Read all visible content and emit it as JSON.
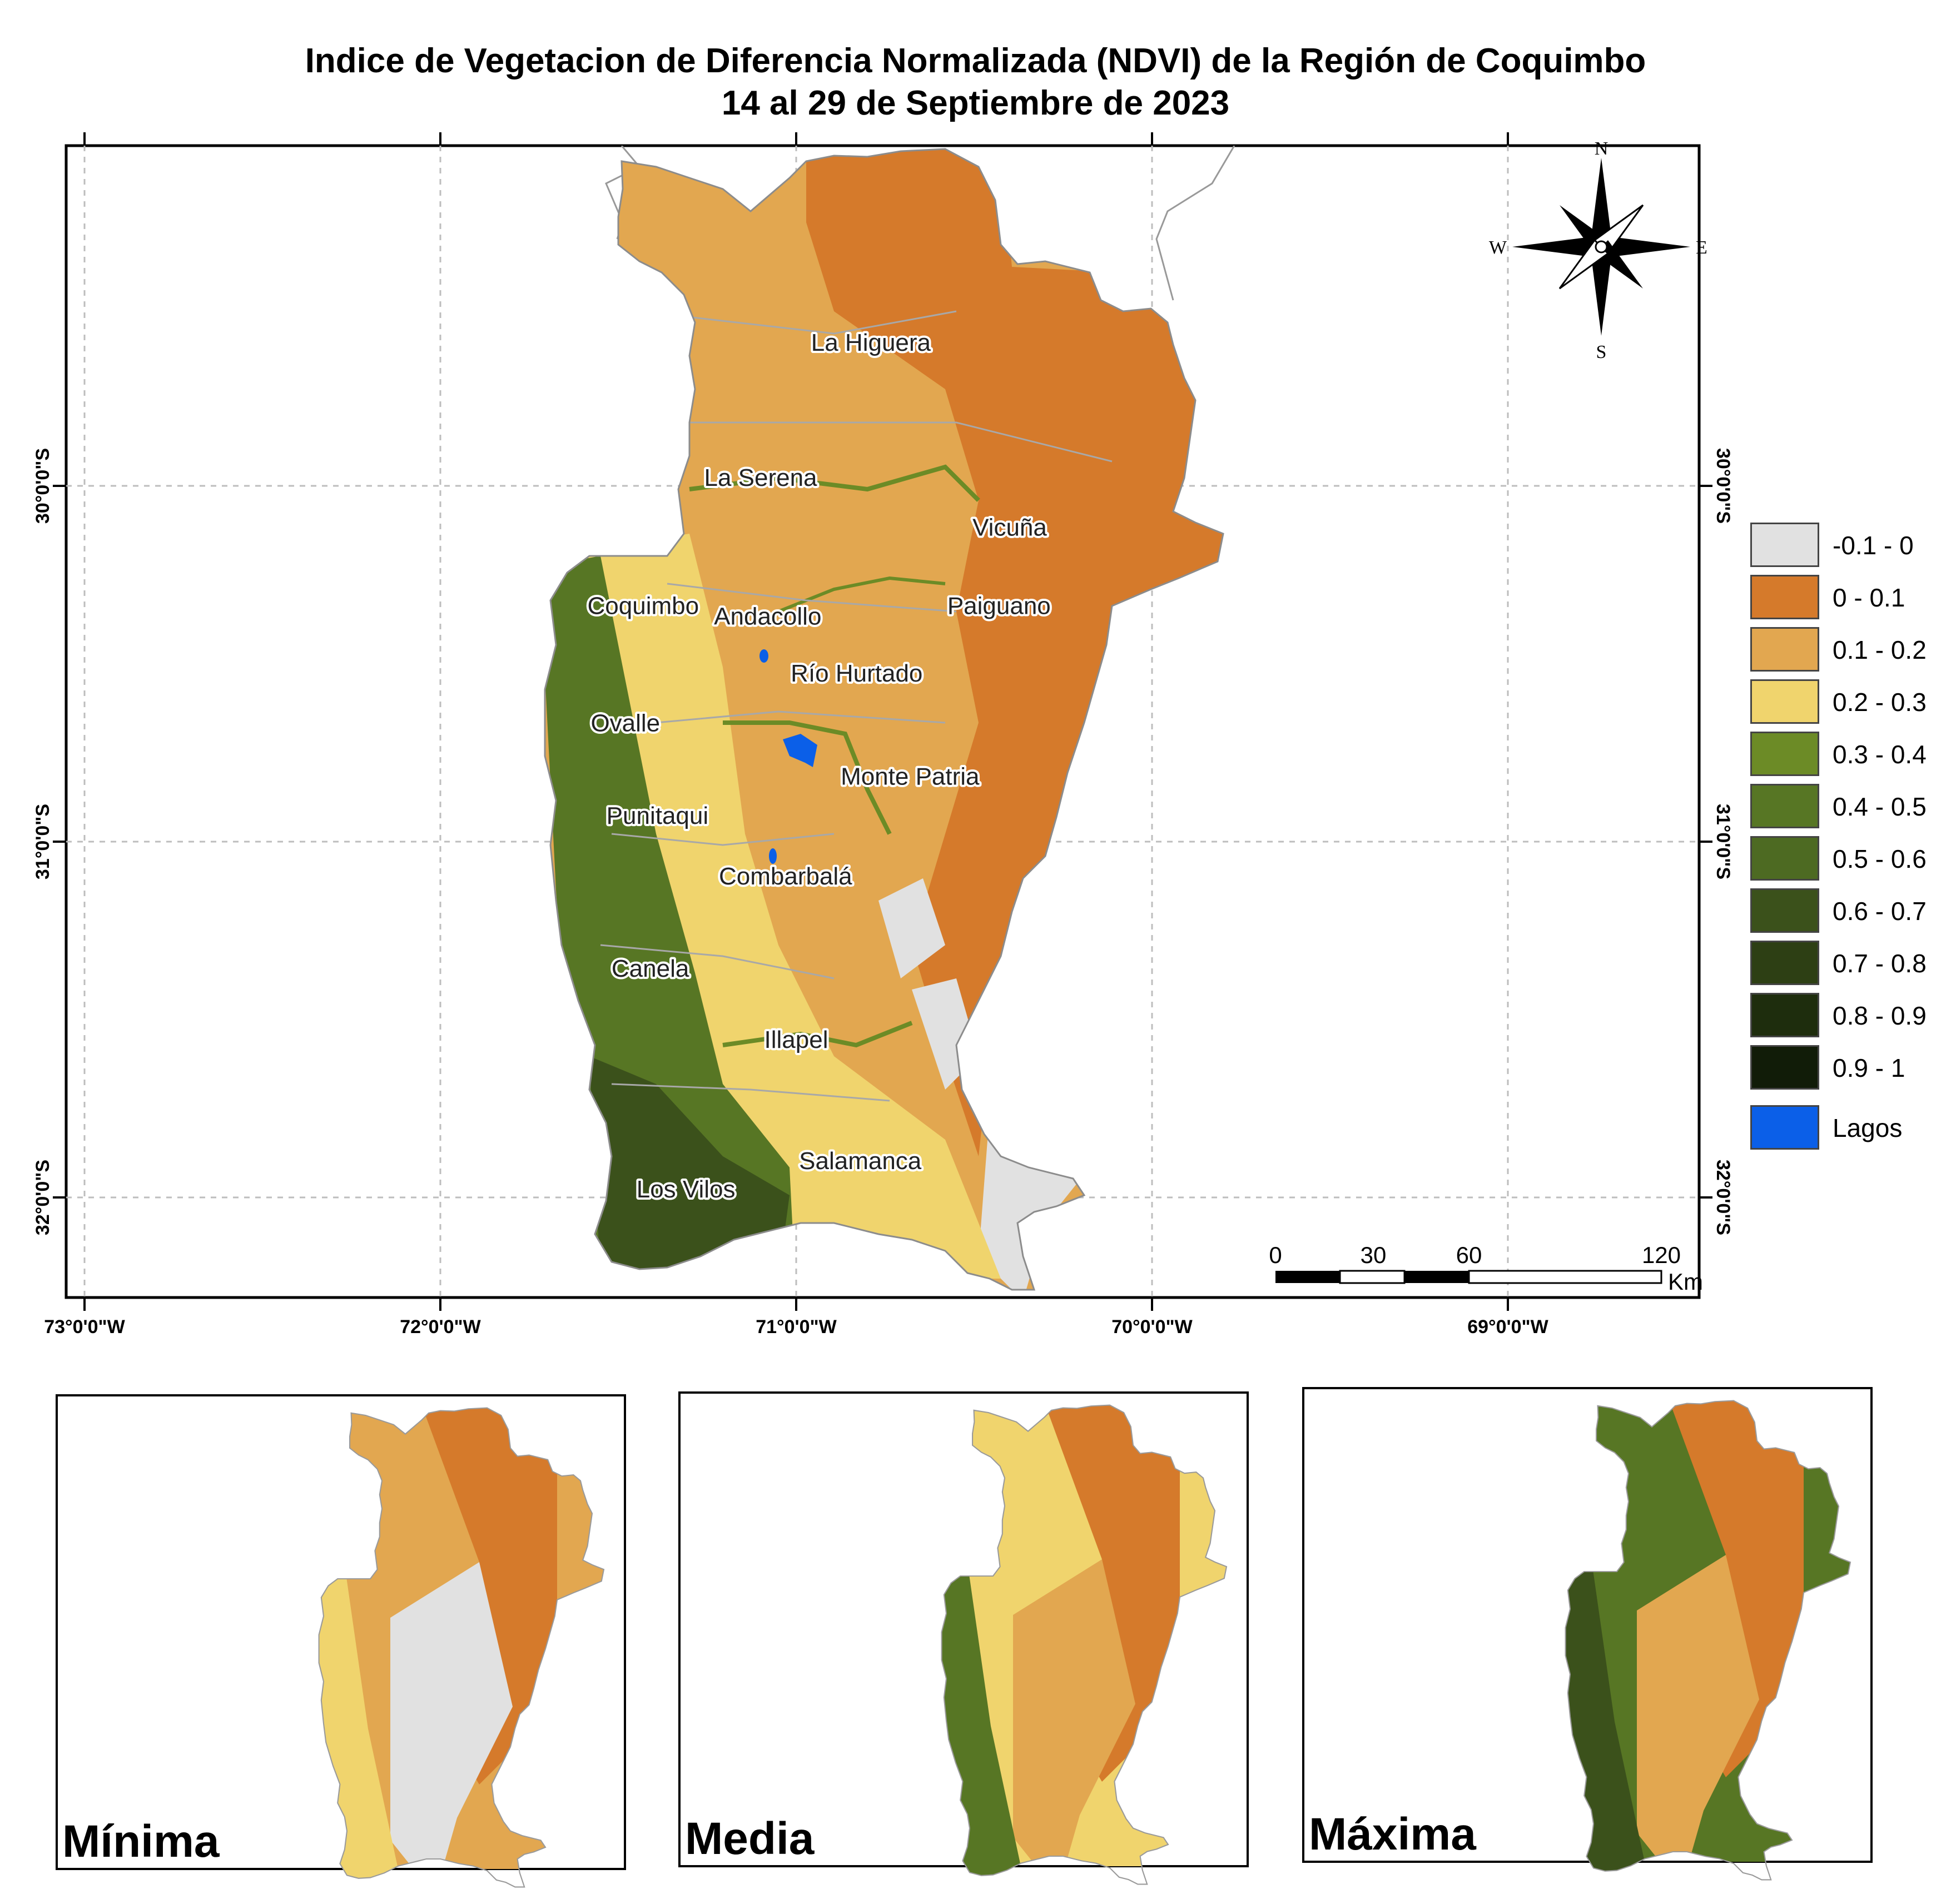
{
  "title": {
    "line1": "Indice de Vegetacion de Diferencia Normalizada (NDVI) de la Región de Coquimbo",
    "line2": "14 al 29 de Septiembre de 2023"
  },
  "map": {
    "lon_ticks": [
      "73°0'0\"W",
      "72°0'0\"W",
      "71°0'0\"W",
      "70°0'0\"W",
      "69°0'0\"W"
    ],
    "lat_ticks": [
      "30°0'0\"S",
      "31°0'0\"S",
      "32°0'0\"S"
    ],
    "places": [
      {
        "name": "La Higuera",
        "lon": -70.79,
        "lat": -29.62
      },
      {
        "name": "La Serena",
        "lon": -71.1,
        "lat": -30.0
      },
      {
        "name": "Vicuña",
        "lon": -70.4,
        "lat": -30.14
      },
      {
        "name": "Coquimbo",
        "lon": -71.43,
        "lat": -30.36
      },
      {
        "name": "Andacollo",
        "lon": -71.08,
        "lat": -30.39
      },
      {
        "name": "Paiguano",
        "lon": -70.43,
        "lat": -30.36
      },
      {
        "name": "Río Hurtado",
        "lon": -70.83,
        "lat": -30.55
      },
      {
        "name": "Ovalle",
        "lon": -71.48,
        "lat": -30.69
      },
      {
        "name": "Monte Patria",
        "lon": -70.68,
        "lat": -30.84
      },
      {
        "name": "Punitaqui",
        "lon": -71.39,
        "lat": -30.95
      },
      {
        "name": "Combarbalá",
        "lon": -71.03,
        "lat": -31.12
      },
      {
        "name": "Canela",
        "lon": -71.41,
        "lat": -31.38
      },
      {
        "name": "Illapel",
        "lon": -71.0,
        "lat": -31.58
      },
      {
        "name": "Salamanca",
        "lon": -70.82,
        "lat": -31.92
      },
      {
        "name": "Los Vilos",
        "lon": -71.31,
        "lat": -32.0
      }
    ],
    "compass": {
      "n": "N",
      "s": "S",
      "e": "E",
      "w": "W"
    },
    "scale_bar": {
      "labels": [
        "0",
        "30",
        "60",
        "120"
      ],
      "unit": "Km"
    }
  },
  "legend": [
    {
      "label": "-0.1 - 0",
      "color": "#e1e1e1"
    },
    {
      "label": "0 - 0.1",
      "color": "#d57a2b"
    },
    {
      "label": "0.1 - 0.2",
      "color": "#e2a750"
    },
    {
      "label": "0.2 - 0.3",
      "color": "#f0d46d"
    },
    {
      "label": "0.3 - 0.4",
      "color": "#6c8b26"
    },
    {
      "label": "0.4 - 0.5",
      "color": "#577624"
    },
    {
      "label": "0.5 - 0.6",
      "color": "#4d6a22"
    },
    {
      "label": "0.6 - 0.7",
      "color": "#3b511b"
    },
    {
      "label": "0.7 - 0.8",
      "color": "#2d3f14"
    },
    {
      "label": "0.8 - 0.9",
      "color": "#1e2d0d"
    },
    {
      "label": "0.9 - 1",
      "color": "#111c08"
    },
    {
      "label": "Lagos",
      "color": "#0b5fe8"
    }
  ],
  "insets": [
    {
      "label": "Mínima"
    },
    {
      "label": "Media"
    },
    {
      "label": "Máxima"
    }
  ]
}
